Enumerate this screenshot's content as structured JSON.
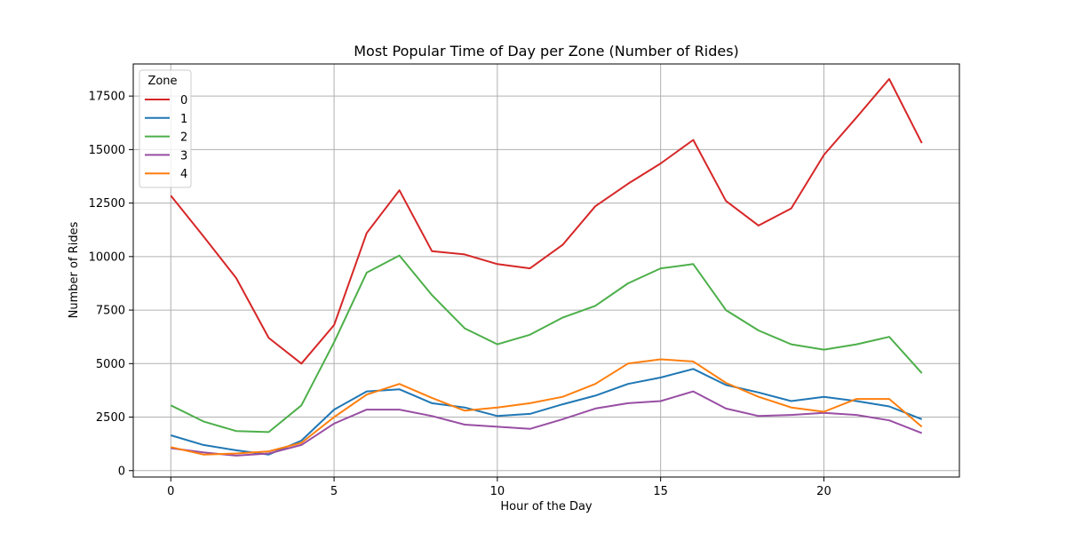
{
  "chart_data": {
    "type": "line",
    "title": "Most Popular Time of Day per Zone (Number of Rides)",
    "xlabel": "Hour of the Day",
    "ylabel": "Number of Rides",
    "x": [
      0,
      1,
      2,
      3,
      4,
      5,
      6,
      7,
      8,
      9,
      10,
      11,
      12,
      13,
      14,
      15,
      16,
      17,
      18,
      19,
      20,
      21,
      22,
      23
    ],
    "xlim": [
      -1.15,
      24.15
    ],
    "ylim": [
      -300,
      19000
    ],
    "xticks": [
      0,
      5,
      10,
      15,
      20
    ],
    "yticks": [
      0,
      2500,
      5000,
      7500,
      10000,
      12500,
      15000,
      17500
    ],
    "grid": true,
    "legend": {
      "title": "Zone",
      "placement": "top-left"
    },
    "series": [
      {
        "name": "0",
        "color": "#d62728",
        "values": [
          12850,
          10950,
          9000,
          6200,
          5000,
          6800,
          11100,
          13100,
          10250,
          10100,
          9650,
          9450,
          10550,
          12350,
          13400,
          14350,
          15450,
          12600,
          11450,
          12250,
          14750,
          16500,
          18300,
          15300
        ]
      },
      {
        "name": "1",
        "color": "#1f77b4",
        "values": [
          1650,
          1200,
          950,
          750,
          1400,
          2850,
          3700,
          3800,
          3150,
          2950,
          2550,
          2650,
          3100,
          3500,
          4050,
          4350,
          4750,
          4000,
          3650,
          3250,
          3450,
          3250,
          3000,
          2400
        ]
      },
      {
        "name": "2",
        "color": "#4daf4a",
        "values": [
          3050,
          2300,
          1850,
          1800,
          3050,
          6000,
          9250,
          10050,
          8200,
          6650,
          5900,
          6350,
          7150,
          7700,
          8750,
          9450,
          9650,
          7500,
          6550,
          5900,
          5650,
          5900,
          6250,
          4550
        ]
      },
      {
        "name": "3",
        "color": "#984ea3",
        "values": [
          1050,
          850,
          700,
          800,
          1200,
          2200,
          2850,
          2850,
          2550,
          2150,
          2050,
          1950,
          2400,
          2900,
          3150,
          3250,
          3700,
          2900,
          2550,
          2600,
          2700,
          2600,
          2350,
          1750
        ]
      },
      {
        "name": "4",
        "color": "#ff7f0e",
        "values": [
          1100,
          750,
          800,
          900,
          1300,
          2500,
          3550,
          4050,
          3400,
          2800,
          2950,
          3150,
          3450,
          4050,
          5000,
          5200,
          5100,
          4100,
          3450,
          2950,
          2750,
          3350,
          3350,
          2050
        ]
      }
    ]
  }
}
